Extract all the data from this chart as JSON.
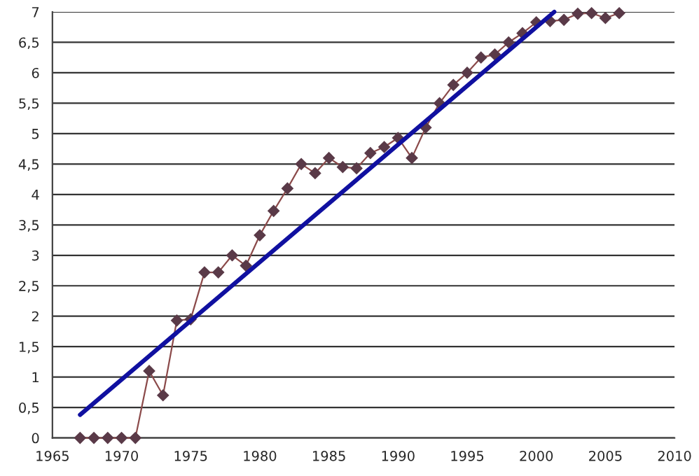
{
  "chart_data": {
    "type": "line",
    "xlim": [
      1965,
      2010
    ],
    "xticks": [
      1965,
      1970,
      1975,
      1980,
      1985,
      1990,
      1995,
      2000,
      2005,
      2010
    ],
    "ylim": [
      0,
      7
    ],
    "yticks": [
      0,
      {
        "value": 0.5,
        "label": "0,5"
      },
      1,
      {
        "value": 1.5,
        "label": "1,5"
      },
      2,
      {
        "value": 2.5,
        "label": "2,5"
      },
      3,
      {
        "value": 3.5,
        "label": "3,5"
      },
      4,
      {
        "value": 4.5,
        "label": "4,5"
      },
      5,
      {
        "value": 5.5,
        "label": "5,5"
      },
      6,
      {
        "value": 6.5,
        "label": "6,5"
      },
      7
    ],
    "grid": "y",
    "series": [
      {
        "color": "#8b4a4a",
        "marker": "diamond",
        "x": [
          1967,
          1968,
          1969,
          1970,
          1971,
          1972,
          1973,
          1974,
          1975,
          1976,
          1977,
          1978,
          1979,
          1980,
          1981,
          1982,
          1983,
          1984,
          1985,
          1986,
          1987,
          1988,
          1989,
          1990,
          1991,
          1992,
          1993,
          1994,
          1995,
          1996,
          1997,
          1998,
          1999,
          2000,
          2001,
          2002,
          2003,
          2004,
          2005,
          2006
        ],
        "values": [
          0,
          0,
          0,
          0,
          0,
          1.1,
          0.7,
          1.93,
          1.95,
          2.72,
          2.72,
          3.0,
          2.83,
          3.33,
          3.73,
          4.1,
          4.5,
          4.35,
          4.6,
          4.45,
          4.43,
          4.68,
          4.78,
          4.93,
          4.6,
          5.1,
          5.5,
          5.8,
          6.0,
          6.25,
          6.3,
          6.5,
          6.65,
          6.83,
          6.85,
          6.87,
          6.97,
          6.98,
          6.9,
          6.98
        ]
      },
      {
        "color": "#1010a0",
        "marker": "none",
        "x": [
          1967,
          2001.3
        ],
        "values": [
          0.38,
          7.0
        ]
      }
    ]
  }
}
